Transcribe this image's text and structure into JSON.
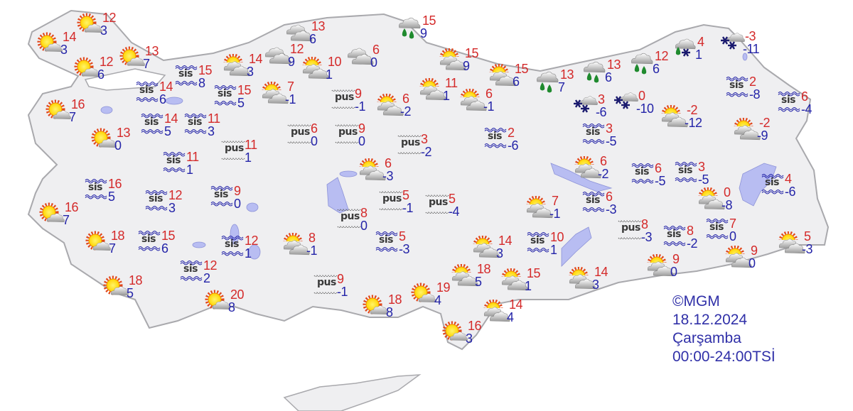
{
  "colors": {
    "land": "#efeff1",
    "border": "#a9a9ad",
    "water": "#b8bdf2",
    "max_temp": "#d42a2a",
    "min_temp": "#2424a8"
  },
  "legend": {
    "copyright": "©MGM",
    "date": "18.12.2024",
    "day": "Çarşamba",
    "period": "00:00-24:00TSİ"
  },
  "stations": [
    {
      "icon": "sun-cloud",
      "max": "14",
      "min": "3"
    },
    {
      "icon": "sun-cloud",
      "max": "12",
      "min": "3"
    },
    {
      "icon": "sun-cloud",
      "max": "12",
      "min": "6"
    },
    {
      "icon": "sun-cloud",
      "max": "13",
      "min": "7"
    },
    {
      "icon": "sun-cloud",
      "max": "16",
      "min": "7"
    },
    {
      "icon": "sun-cloud",
      "max": "13",
      "min": "0"
    },
    {
      "icon": "sun-cloud",
      "max": "16",
      "min": "7"
    },
    {
      "icon": "sun-cloud",
      "max": "18",
      "min": "7"
    },
    {
      "icon": "sun-cloud",
      "max": "18",
      "min": "5"
    },
    {
      "icon": "sun-cloud",
      "max": "20",
      "min": "8"
    },
    {
      "icon": "fog",
      "label": "sis",
      "max": "15",
      "min": "8"
    },
    {
      "icon": "fog",
      "label": "sis",
      "max": "14",
      "min": "6"
    },
    {
      "icon": "fog",
      "label": "sis",
      "max": "15",
      "min": "5"
    },
    {
      "icon": "fog",
      "label": "sis",
      "max": "14",
      "min": "5"
    },
    {
      "icon": "fog",
      "label": "sis",
      "max": "11",
      "min": "3"
    },
    {
      "icon": "haze",
      "label": "pus",
      "max": "11",
      "min": "1"
    },
    {
      "icon": "fog",
      "label": "sis",
      "max": "11",
      "min": "1"
    },
    {
      "icon": "fog",
      "label": "sis",
      "max": "16",
      "min": "5"
    },
    {
      "icon": "fog",
      "label": "sis",
      "max": "12",
      "min": "3"
    },
    {
      "icon": "fog",
      "label": "sis",
      "max": "9",
      "min": "0"
    },
    {
      "icon": "fog",
      "label": "sis",
      "max": "15",
      "min": "6"
    },
    {
      "icon": "fog",
      "label": "sis",
      "max": "12",
      "min": "1"
    },
    {
      "icon": "fog",
      "label": "sis",
      "max": "12",
      "min": "2"
    },
    {
      "icon": "partly-cloudy",
      "max": "14",
      "min": "3"
    },
    {
      "icon": "cloudy",
      "max": "12",
      "min": "9"
    },
    {
      "icon": "cloudy",
      "max": "13",
      "min": "6"
    },
    {
      "icon": "partly-cloudy",
      "max": "10",
      "min": "1"
    },
    {
      "icon": "cloudy",
      "max": "6",
      "min": "0"
    },
    {
      "icon": "rain",
      "max": "15",
      "min": "9"
    },
    {
      "icon": "partly-cloudy",
      "max": "7",
      "min": "-1"
    },
    {
      "icon": "haze",
      "label": "pus",
      "max": "9",
      "min": "-1"
    },
    {
      "icon": "partly-cloudy",
      "max": "6",
      "min": "-2"
    },
    {
      "icon": "partly-cloudy",
      "max": "15",
      "min": "9"
    },
    {
      "icon": "partly-cloudy",
      "max": "11",
      "min": "1"
    },
    {
      "icon": "partly-cloudy",
      "max": "6",
      "min": "-1"
    },
    {
      "icon": "partly-cloudy",
      "max": "15",
      "min": "6"
    },
    {
      "icon": "rain",
      "max": "13",
      "min": "7"
    },
    {
      "icon": "rain",
      "max": "13",
      "min": "6"
    },
    {
      "icon": "rain",
      "max": "12",
      "min": "6"
    },
    {
      "icon": "rain-snow",
      "max": "4",
      "min": "1"
    },
    {
      "icon": "snow",
      "max": "-3",
      "min": "-11"
    },
    {
      "icon": "haze",
      "label": "pus",
      "max": "6",
      "min": "0"
    },
    {
      "icon": "haze",
      "label": "pus",
      "max": "9",
      "min": "0"
    },
    {
      "icon": "haze",
      "label": "pus",
      "max": "3",
      "min": "-2"
    },
    {
      "icon": "fog",
      "label": "sis",
      "max": "2",
      "min": "-6"
    },
    {
      "icon": "partly-cloudy",
      "max": "6",
      "min": "-3"
    },
    {
      "icon": "haze",
      "label": "pus",
      "max": "5",
      "min": "-1"
    },
    {
      "icon": "haze",
      "label": "pus",
      "max": "5",
      "min": "-4"
    },
    {
      "icon": "haze",
      "label": "pus",
      "max": "8",
      "min": "0"
    },
    {
      "icon": "fog",
      "label": "sis",
      "max": "5",
      "min": "-3"
    },
    {
      "icon": "partly-cloudy",
      "max": "8",
      "min": "-1"
    },
    {
      "icon": "haze",
      "label": "pus",
      "max": "9",
      "min": "-1"
    },
    {
      "icon": "sun-cloud",
      "max": "18",
      "min": "8"
    },
    {
      "icon": "sun-cloud",
      "max": "19",
      "min": "4"
    },
    {
      "icon": "sun-cloud",
      "max": "16",
      "min": "3"
    },
    {
      "icon": "partly-cloudy",
      "max": "18",
      "min": "5"
    },
    {
      "icon": "partly-cloudy",
      "max": "14",
      "min": "3"
    },
    {
      "icon": "partly-cloudy",
      "max": "15",
      "min": "1"
    },
    {
      "icon": "partly-cloudy",
      "max": "14",
      "min": "4"
    },
    {
      "icon": "partly-cloudy",
      "max": "7",
      "min": "-1"
    },
    {
      "icon": "fog",
      "label": "sis",
      "max": "10",
      "min": "1"
    },
    {
      "icon": "partly-cloudy",
      "max": "14",
      "min": "3"
    },
    {
      "icon": "snow",
      "max": "3",
      "min": "-6"
    },
    {
      "icon": "snow",
      "max": "0",
      "min": "-10"
    },
    {
      "icon": "partly-cloudy",
      "max": "-2",
      "min": "-12"
    },
    {
      "icon": "fog",
      "label": "sis",
      "max": "3",
      "min": "-5"
    },
    {
      "icon": "partly-cloudy",
      "max": "6",
      "min": "-2"
    },
    {
      "icon": "fog",
      "label": "sis",
      "max": "6",
      "min": "-5"
    },
    {
      "icon": "fog",
      "label": "sis",
      "max": "3",
      "min": "-5"
    },
    {
      "icon": "fog",
      "label": "sis",
      "max": "2",
      "min": "-8"
    },
    {
      "icon": "fog",
      "label": "sis",
      "max": "6",
      "min": "-4"
    },
    {
      "icon": "partly-cloudy",
      "max": "-2",
      "min": "-9"
    },
    {
      "icon": "fog",
      "label": "sis",
      "max": "4",
      "min": "-6"
    },
    {
      "icon": "partly-cloudy",
      "max": "0",
      "min": "-8"
    },
    {
      "icon": "fog",
      "label": "sis",
      "max": "6",
      "min": "-3"
    },
    {
      "icon": "haze",
      "label": "pus",
      "max": "8",
      "min": "-3"
    },
    {
      "icon": "fog",
      "label": "sis",
      "max": "8",
      "min": "-2"
    },
    {
      "icon": "fog",
      "label": "sis",
      "max": "7",
      "min": "0"
    },
    {
      "icon": "partly-cloudy",
      "max": "9",
      "min": "0"
    },
    {
      "icon": "partly-cloudy",
      "max": "9",
      "min": "0"
    },
    {
      "icon": "partly-cloudy",
      "max": "5",
      "min": "-3"
    }
  ]
}
